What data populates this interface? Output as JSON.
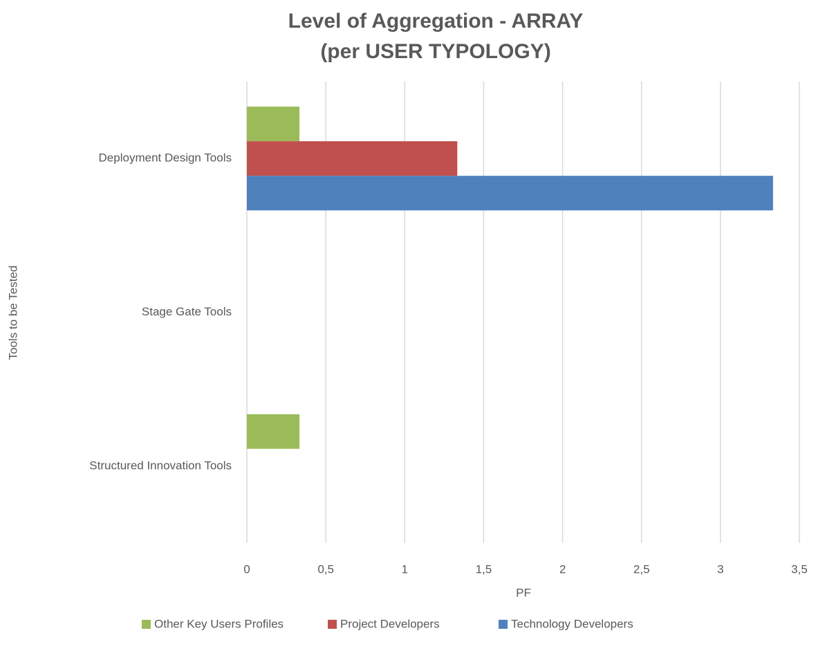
{
  "chart_data": {
    "type": "hbar",
    "title": [
      "Level of Aggregation - ARRAY",
      "(per USER TYPOLOGY)"
    ],
    "x_label": "PF",
    "y_label": "Tools to be Tested",
    "categories": [
      "Deployment Design Tools",
      "Stage Gate Tools",
      "Structured Innovation Tools"
    ],
    "series": [
      {
        "name": "Other Key Users Profiles",
        "color": "#9bbb59",
        "values": [
          0.333,
          0,
          0.333
        ]
      },
      {
        "name": "Project Developers",
        "color": "#c0504d",
        "values": [
          1.333,
          0,
          0
        ]
      },
      {
        "name": "Technology Developers",
        "color": "#4f81bd",
        "values": [
          3.333,
          0,
          0
        ]
      }
    ],
    "xlim": [
      0,
      3.5
    ],
    "xticks": [
      0,
      {
        "value": 0.5,
        "label": "0,5"
      },
      1,
      {
        "value": 1.5,
        "label": "1,5"
      },
      2,
      {
        "value": 2.5,
        "label": "2,5"
      },
      3,
      {
        "value": 3.5,
        "label": "3,5"
      }
    ],
    "grid": true,
    "legend": "bottom"
  }
}
